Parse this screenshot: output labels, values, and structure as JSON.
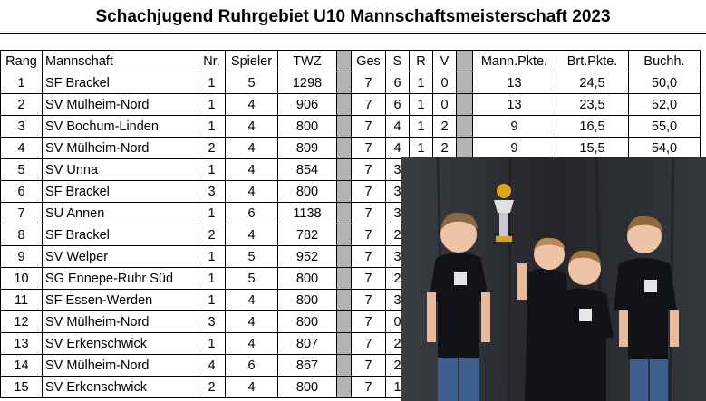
{
  "title": "Schachjugend Ruhrgebiet U10 Mannschaftsmeisterschaft 2023",
  "headers": {
    "rang": "Rang",
    "mannschaft": "Mannschaft",
    "nr": "Nr.",
    "spieler": "Spieler",
    "twz": "TWZ",
    "ges": "Ges",
    "s": "S",
    "r": "R",
    "v": "V",
    "mann_pkte": "Mann.Pkte.",
    "brt_pkte": "Brt.Pkte.",
    "buchh": "Buchh."
  },
  "rows": [
    {
      "rang": "1",
      "mannschaft": "SF Brackel",
      "nr": "1",
      "spieler": "5",
      "twz": "1298",
      "ges": "7",
      "s": "6",
      "r": "1",
      "v": "0",
      "mann_pkte": "13",
      "brt_pkte": "24,5",
      "buchh": "50,0"
    },
    {
      "rang": "2",
      "mannschaft": "SV Mülheim-Nord",
      "nr": "1",
      "spieler": "4",
      "twz": "906",
      "ges": "7",
      "s": "6",
      "r": "1",
      "v": "0",
      "mann_pkte": "13",
      "brt_pkte": "23,5",
      "buchh": "52,0"
    },
    {
      "rang": "3",
      "mannschaft": "SV Bochum-Linden",
      "nr": "1",
      "spieler": "4",
      "twz": "800",
      "ges": "7",
      "s": "4",
      "r": "1",
      "v": "2",
      "mann_pkte": "9",
      "brt_pkte": "16,5",
      "buchh": "55,0"
    },
    {
      "rang": "4",
      "mannschaft": "SV Mülheim-Nord",
      "nr": "2",
      "spieler": "4",
      "twz": "809",
      "ges": "7",
      "s": "4",
      "r": "1",
      "v": "2",
      "mann_pkte": "9",
      "brt_pkte": "15,5",
      "buchh": "54,0"
    },
    {
      "rang": "5",
      "mannschaft": "SV Unna",
      "nr": "1",
      "spieler": "4",
      "twz": "854",
      "ges": "7",
      "s": "3",
      "r": "",
      "v": "",
      "mann_pkte": "",
      "brt_pkte": "",
      "buchh": ""
    },
    {
      "rang": "6",
      "mannschaft": "SF Brackel",
      "nr": "3",
      "spieler": "4",
      "twz": "800",
      "ges": "7",
      "s": "3",
      "r": "",
      "v": "",
      "mann_pkte": "",
      "brt_pkte": "",
      "buchh": ""
    },
    {
      "rang": "7",
      "mannschaft": "SU Annen",
      "nr": "1",
      "spieler": "6",
      "twz": "1138",
      "ges": "7",
      "s": "3",
      "r": "",
      "v": "",
      "mann_pkte": "",
      "brt_pkte": "",
      "buchh": ""
    },
    {
      "rang": "8",
      "mannschaft": "SF Brackel",
      "nr": "2",
      "spieler": "4",
      "twz": "782",
      "ges": "7",
      "s": "2",
      "r": "",
      "v": "",
      "mann_pkte": "",
      "brt_pkte": "",
      "buchh": ""
    },
    {
      "rang": "9",
      "mannschaft": "SV Welper",
      "nr": "1",
      "spieler": "5",
      "twz": "952",
      "ges": "7",
      "s": "3",
      "r": "",
      "v": "",
      "mann_pkte": "",
      "brt_pkte": "",
      "buchh": ""
    },
    {
      "rang": "10",
      "mannschaft": "SG Ennepe-Ruhr Süd",
      "nr": "1",
      "spieler": "5",
      "twz": "800",
      "ges": "7",
      "s": "2",
      "r": "",
      "v": "",
      "mann_pkte": "",
      "brt_pkte": "",
      "buchh": ""
    },
    {
      "rang": "11",
      "mannschaft": "SF Essen-Werden",
      "nr": "1",
      "spieler": "4",
      "twz": "800",
      "ges": "7",
      "s": "3",
      "r": "",
      "v": "",
      "mann_pkte": "",
      "brt_pkte": "",
      "buchh": ""
    },
    {
      "rang": "12",
      "mannschaft": "SV Mülheim-Nord",
      "nr": "3",
      "spieler": "4",
      "twz": "800",
      "ges": "7",
      "s": "0",
      "r": "",
      "v": "",
      "mann_pkte": "",
      "brt_pkte": "",
      "buchh": ""
    },
    {
      "rang": "13",
      "mannschaft": "SV Erkenschwick",
      "nr": "1",
      "spieler": "4",
      "twz": "807",
      "ges": "7",
      "s": "2",
      "r": "",
      "v": "",
      "mann_pkte": "",
      "brt_pkte": "",
      "buchh": ""
    },
    {
      "rang": "14",
      "mannschaft": "SV Mülheim-Nord",
      "nr": "4",
      "spieler": "6",
      "twz": "867",
      "ges": "7",
      "s": "2",
      "r": "",
      "v": "",
      "mann_pkte": "",
      "brt_pkte": "",
      "buchh": ""
    },
    {
      "rang": "15",
      "mannschaft": "SV Erkenschwick",
      "nr": "2",
      "spieler": "4",
      "twz": "800",
      "ges": "7",
      "s": "1",
      "r": "",
      "v": "",
      "mann_pkte": "",
      "brt_pkte": "",
      "buchh": ""
    }
  ],
  "colors": {
    "separator": "#b4b4b4",
    "photo_backdrop": "#2b2d31",
    "shirt": "#111214",
    "trophy": "#d9a520"
  }
}
